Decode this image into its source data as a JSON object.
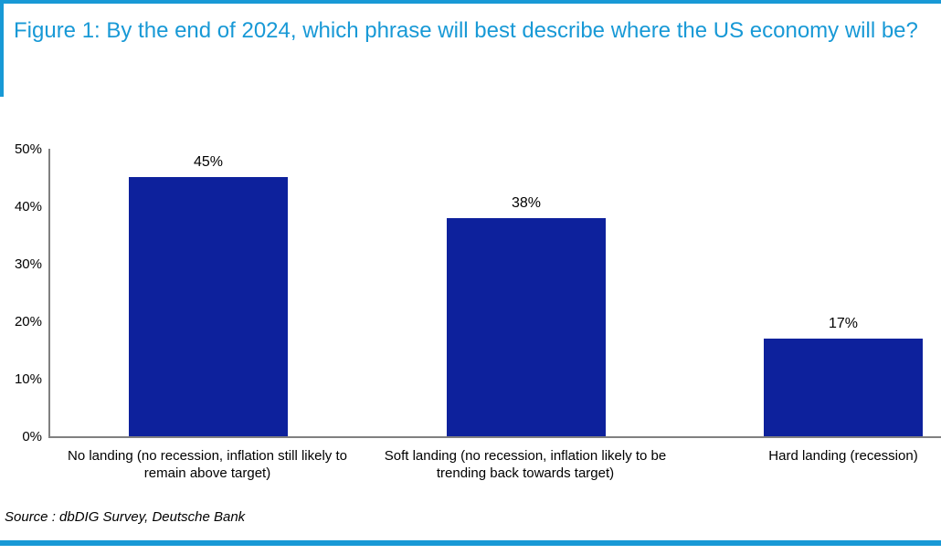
{
  "figure": {
    "title": "Figure 1: By the end of 2024, which phrase will best describe where the US economy will be?",
    "source": "Source : dbDIG Survey, Deutsche Bank"
  },
  "colors": {
    "accent_blue": "#1899d6",
    "bar_navy": "#0d219c",
    "axis_gray": "#808080",
    "text_black": "#000000",
    "background": "#ffffff"
  },
  "chart_data": {
    "type": "bar",
    "categories": [
      "No landing (no recession, inflation still likely to remain above target)",
      "Soft landing (no recession, inflation likely to be trending back towards target)",
      "Hard landing (recession)"
    ],
    "values": [
      45,
      38,
      17
    ],
    "value_labels": [
      "45%",
      "38%",
      "17%"
    ],
    "y_ticks": [
      "0%",
      "10%",
      "20%",
      "30%",
      "40%",
      "50%"
    ],
    "ylim": [
      0,
      50
    ],
    "grid": false,
    "legend": false,
    "title": "",
    "xlabel": "",
    "ylabel": ""
  }
}
